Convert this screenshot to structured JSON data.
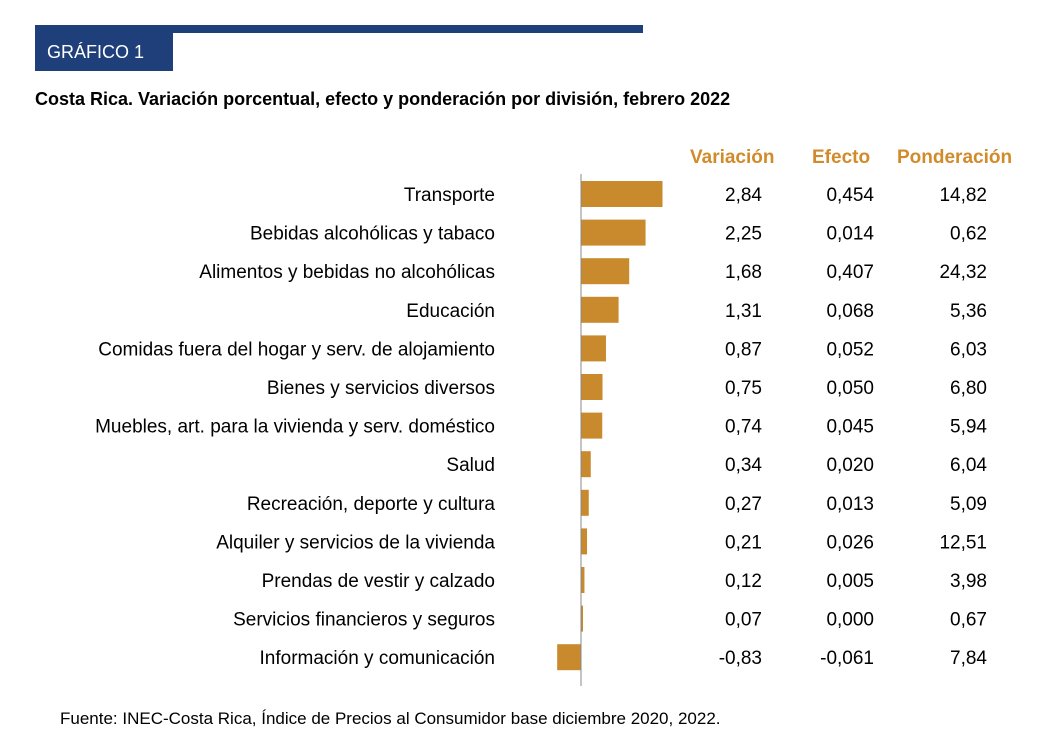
{
  "badge": "GRÁFICO 1",
  "title": "Costa Rica. Variación porcentual, efecto y ponderación por división, febrero 2022",
  "headers": {
    "variacion": "Variación",
    "efecto": "Efecto",
    "ponderacion": "Ponderación"
  },
  "colors": {
    "accent": "#d18b2b",
    "bar": "#c98a2e",
    "navy": "#1f3f7a",
    "axis": "#888888"
  },
  "source": "Fuente: INEC-Costa Rica, Índice de Precios al Consumidor base diciembre 2020, 2022.",
  "chart_data": {
    "type": "bar",
    "orientation": "horizontal",
    "title": "Costa Rica. Variación porcentual, efecto y ponderación por división, febrero 2022",
    "categories": [
      "Transporte",
      "Bebidas alcohólicas y tabaco",
      "Alimentos y bebidas no alcohólicas",
      "Educación",
      "Comidas fuera del hogar y serv. de alojamiento",
      "Bienes y servicios diversos",
      "Muebles, art. para la vivienda y serv. doméstico",
      "Salud",
      "Recreación, deporte y cultura",
      "Alquiler y servicios de la vivienda",
      "Prendas de vestir y calzado",
      "Servicios financieros y seguros",
      "Información y comunicación"
    ],
    "values": [
      2.84,
      2.25,
      1.68,
      1.31,
      0.87,
      0.75,
      0.74,
      0.34,
      0.27,
      0.21,
      0.12,
      0.07,
      -0.83
    ],
    "table": {
      "variacion": [
        "2,84",
        "2,25",
        "1,68",
        "1,31",
        "0,87",
        "0,75",
        "0,74",
        "0,34",
        "0,27",
        "0,21",
        "0,12",
        "0,07",
        "-0,83"
      ],
      "efecto": [
        "0,454",
        "0,014",
        "0,407",
        "0,068",
        "0,052",
        "0,050",
        "0,045",
        "0,020",
        "0,013",
        "0,026",
        "0,005",
        "0,000",
        "-0,061"
      ],
      "ponderacion": [
        "14,82",
        "0,62",
        "24,32",
        "5,36",
        "6,03",
        "6,80",
        "5,94",
        "6,04",
        "5,09",
        "12,51",
        "3,98",
        "0,67",
        "7,84"
      ]
    },
    "xlabel": "",
    "ylabel": "",
    "grid": false,
    "legend": "none"
  }
}
